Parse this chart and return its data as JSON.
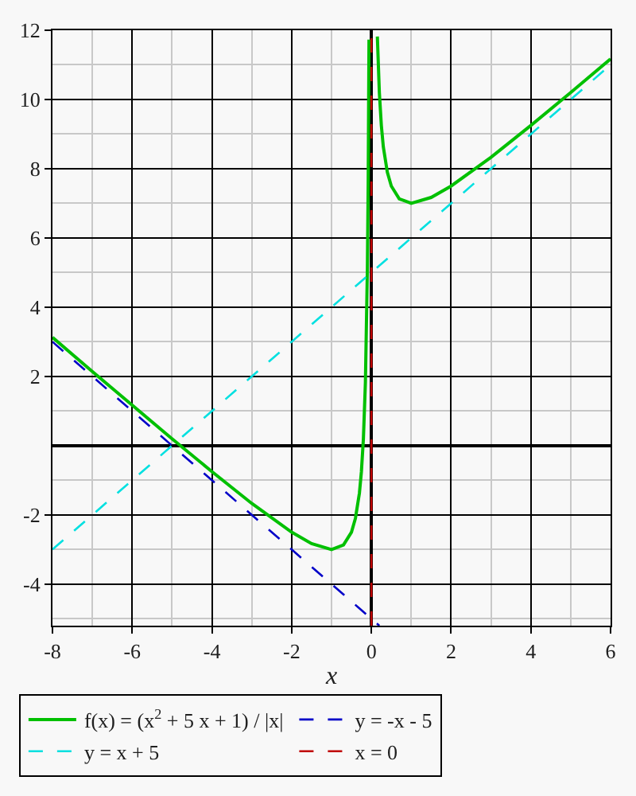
{
  "chart_data": {
    "type": "line",
    "xlabel": "x",
    "xlim": [
      -8,
      6
    ],
    "ylim": [
      -5.2,
      12
    ],
    "xticks": [
      -8,
      {
        "value": -7,
        "label": null
      },
      -6,
      {
        "value": -5,
        "label": null
      },
      -4,
      {
        "value": -3,
        "label": null
      },
      -2,
      {
        "value": -1,
        "label": null
      },
      0,
      {
        "value": 1,
        "label": null
      },
      2,
      {
        "value": 3,
        "label": null
      },
      4,
      {
        "value": 5,
        "label": null
      },
      6
    ],
    "yticks": [
      -4,
      {
        "value": -5,
        "label": null
      },
      {
        "value": -3,
        "label": null
      },
      -2,
      {
        "value": -1,
        "label": null
      },
      {
        "value": 1,
        "label": null
      },
      2,
      {
        "value": 3,
        "label": null
      },
      4,
      {
        "value": 5,
        "label": null
      },
      6,
      {
        "value": 7,
        "label": null
      },
      8,
      {
        "value": 9,
        "label": null
      },
      10,
      {
        "value": 11,
        "label": null
      },
      12
    ],
    "grid": true,
    "legend": "bottom",
    "series": [
      {
        "name": "f(x) = (x$^{2}$ + 5 x + 1) / |x|",
        "color": "#00c000",
        "line_style": "solid",
        "x": [
          -8,
          -7,
          -6,
          -5,
          -4,
          -3,
          -2,
          -1.5,
          -1,
          -0.7,
          -0.5,
          -0.4,
          -0.3,
          -0.25,
          -0.2,
          -0.15,
          -0.1,
          -0.08,
          -0.06,
          0,
          0.15,
          0.2,
          0.25,
          0.3,
          0.4,
          0.5,
          0.7,
          1,
          1.5,
          2,
          3,
          4,
          5,
          6
        ],
        "values": [
          3.13,
          2.14,
          1.17,
          0.2,
          -0.75,
          -1.67,
          -2.5,
          -2.83,
          -3,
          -2.87,
          -2.5,
          -2.1,
          -1.37,
          -0.75,
          0.2,
          1.82,
          5.1,
          7.58,
          11.73,
          null,
          11.82,
          10.2,
          9.25,
          8.63,
          7.9,
          7.5,
          7.13,
          7,
          7.17,
          7.5,
          8.33,
          9.25,
          10.2,
          11.17
        ]
      },
      {
        "name": "y = -x - 5",
        "color": "#0000c8",
        "line_style": "dashed",
        "x": [
          -8,
          0.2
        ],
        "values": [
          3,
          -5.2
        ]
      },
      {
        "name": "y = x + 5",
        "color": "#00e0e0",
        "line_style": "dashed",
        "x": [
          -8,
          6
        ],
        "values": [
          -3,
          11
        ]
      },
      {
        "name": "x = 0",
        "color": "#c00000",
        "line_style": "dashed",
        "x": [
          0,
          0
        ],
        "values": [
          -5.2,
          12
        ]
      }
    ]
  }
}
